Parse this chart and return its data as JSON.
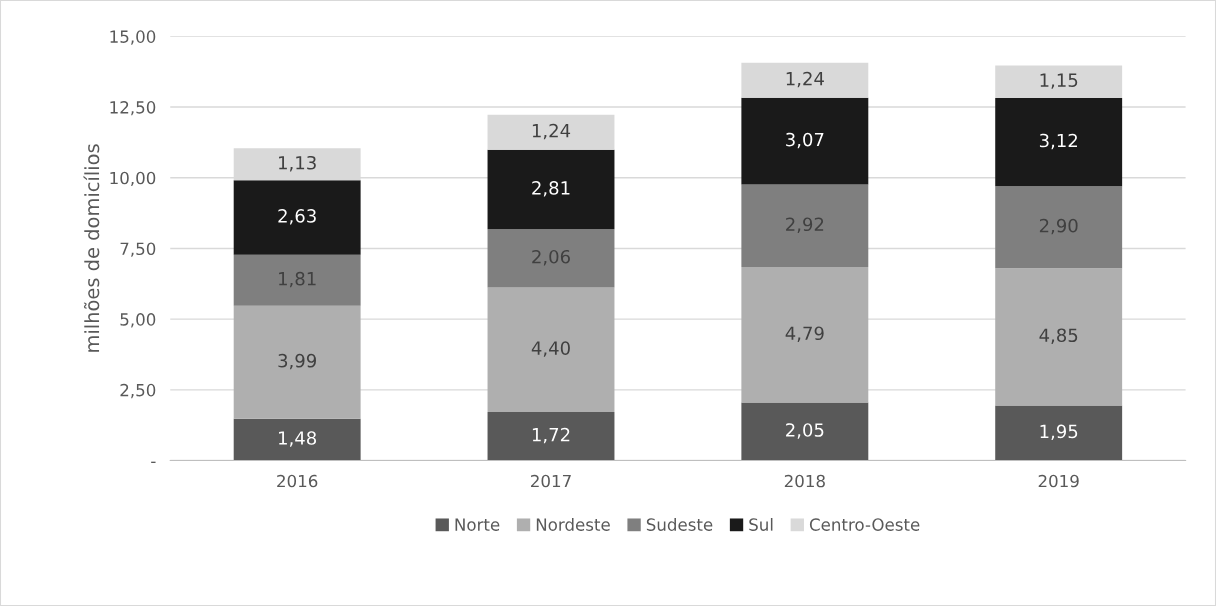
{
  "chart_data": {
    "type": "bar",
    "stacked": true,
    "ylabel": "milhões de domicílios",
    "categories": [
      "2016",
      "2017",
      "2018",
      "2019"
    ],
    "series": [
      {
        "name": "Norte",
        "color": "#595959",
        "values": [
          1.48,
          1.72,
          2.05,
          1.95
        ],
        "value_labels": [
          "1,48",
          "1,72",
          "2,05",
          "1,95"
        ]
      },
      {
        "name": "Nordeste",
        "color": "#afafaf",
        "values": [
          3.99,
          4.4,
          4.79,
          4.85
        ],
        "value_labels": [
          "3,99",
          "4,40",
          "4,79",
          "4,85"
        ]
      },
      {
        "name": "Sudeste",
        "color": "#7f7f7f",
        "values": [
          1.81,
          2.06,
          2.92,
          2.9
        ],
        "value_labels": [
          "1,81",
          "2,06",
          "2,92",
          "2,90"
        ]
      },
      {
        "name": "Sul",
        "color": "#1a1a1a",
        "values": [
          2.63,
          2.81,
          3.07,
          3.12
        ],
        "value_labels": [
          "2,63",
          "2,81",
          "3,07",
          "3,12"
        ]
      },
      {
        "name": "Centro-Oeste",
        "color": "#d9d9d9",
        "values": [
          1.13,
          1.24,
          1.24,
          1.15
        ],
        "value_labels": [
          "1,13",
          "1,24",
          "1,24",
          "1,15"
        ]
      }
    ],
    "ylim": [
      0,
      15
    ],
    "yticks": [
      {
        "value": 0,
        "label": "-"
      },
      {
        "value": 2.5,
        "label": "2,50"
      },
      {
        "value": 5,
        "label": "5,00"
      },
      {
        "value": 7.5,
        "label": "7,50"
      },
      {
        "value": 10,
        "label": "10,00"
      },
      {
        "value": 12.5,
        "label": "12,50"
      },
      {
        "value": 15,
        "label": "15,00"
      }
    ],
    "grid": "y",
    "legend": "bottom"
  }
}
